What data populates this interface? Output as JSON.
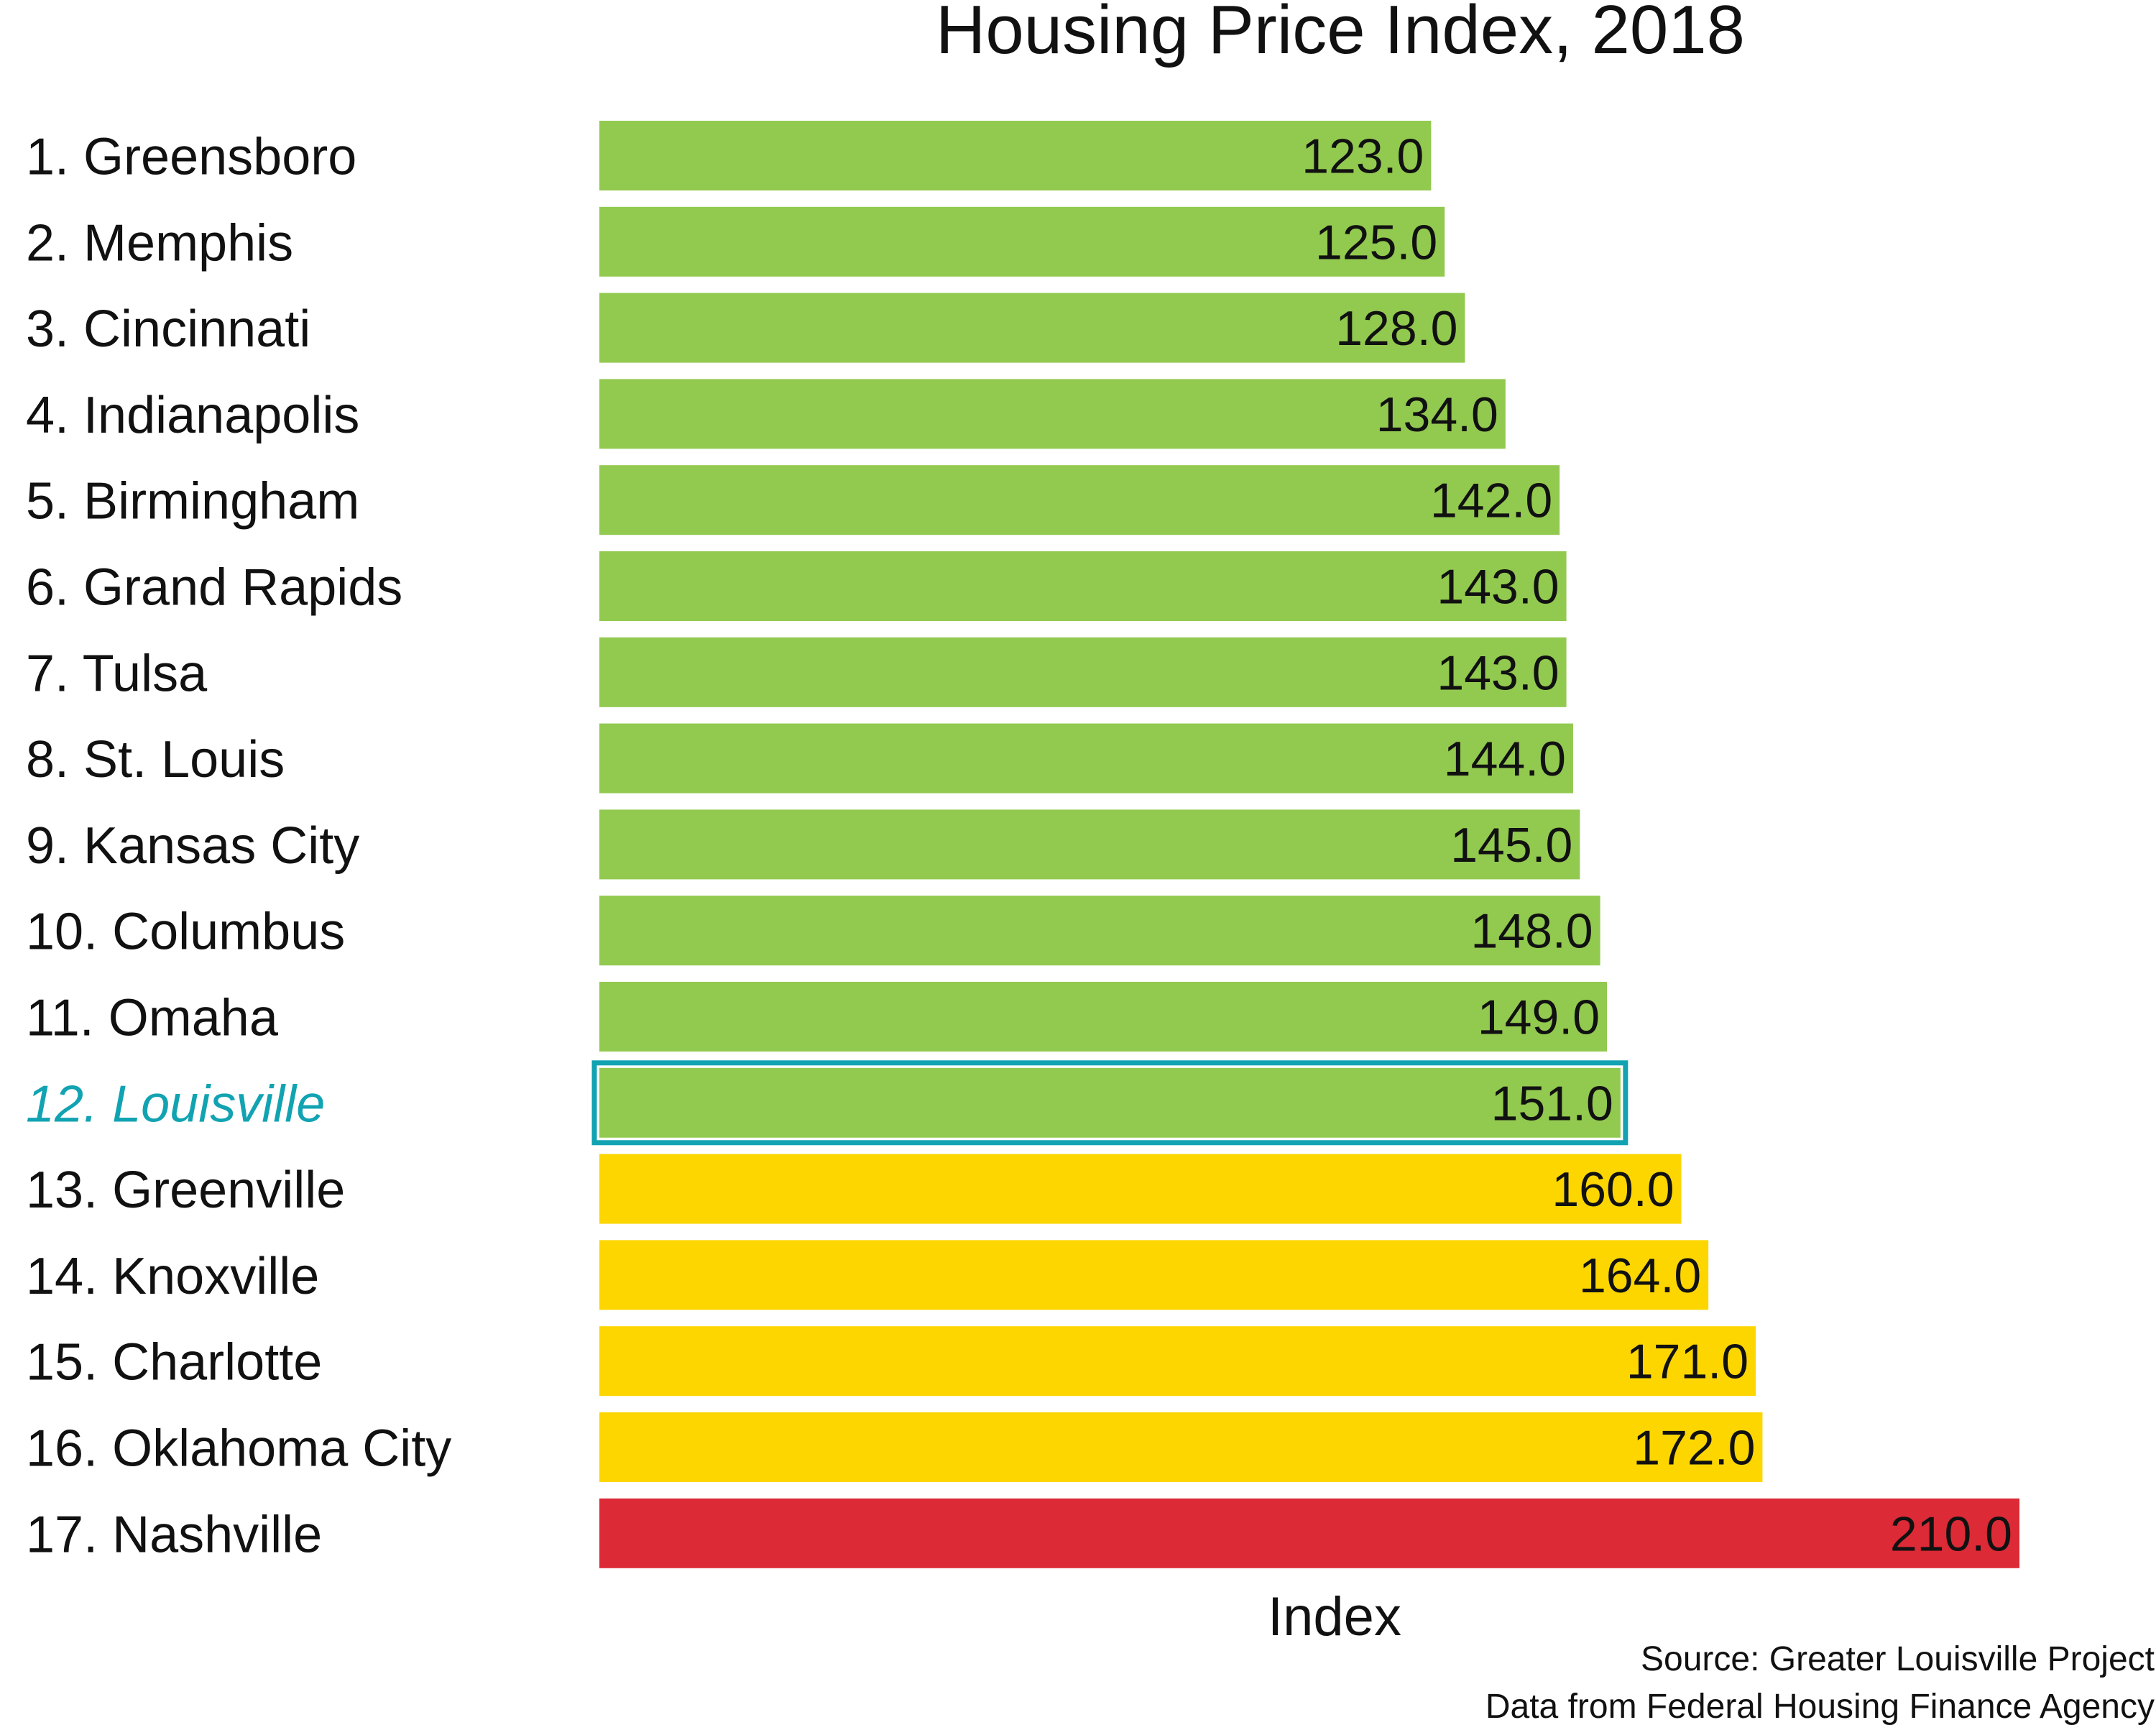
{
  "chart_data": {
    "type": "bar",
    "orientation": "horizontal",
    "title": "Housing Price Index, 2018",
    "xlabel": "Index",
    "ylabel": "",
    "xlim": [
      0,
      210
    ],
    "grid": false,
    "legend": "none",
    "categories": [
      "1. Greensboro",
      "2. Memphis",
      "3. Cincinnati",
      "4. Indianapolis",
      "5. Birmingham",
      "6. Grand Rapids",
      "7. Tulsa",
      "8. St. Louis",
      "9. Kansas City",
      "10. Columbus",
      "11. Omaha",
      "12. Louisville",
      "13. Greenville",
      "14. Knoxville",
      "15. Charlotte",
      "16. Oklahoma City",
      "17. Nashville"
    ],
    "values": [
      123.0,
      125.0,
      128.0,
      134.0,
      142.0,
      143.0,
      143.0,
      144.0,
      145.0,
      148.0,
      149.0,
      151.0,
      160.0,
      164.0,
      171.0,
      172.0,
      210.0
    ],
    "data_labels": [
      "123.0",
      "125.0",
      "128.0",
      "134.0",
      "142.0",
      "143.0",
      "143.0",
      "144.0",
      "145.0",
      "148.0",
      "149.0",
      "151.0",
      "160.0",
      "164.0",
      "171.0",
      "172.0",
      "210.0"
    ],
    "bar_colors": [
      "#92c94f",
      "#92c94f",
      "#92c94f",
      "#92c94f",
      "#92c94f",
      "#92c94f",
      "#92c94f",
      "#92c94f",
      "#92c94f",
      "#92c94f",
      "#92c94f",
      "#92c94f",
      "#fdd600",
      "#fdd600",
      "#fdd600",
      "#fdd600",
      "#dc2a36"
    ],
    "highlight": {
      "category": "12. Louisville",
      "color": "#12a3b2"
    },
    "source_lines": [
      "Source: Greater Louisville Project",
      "Data from Federal Housing Finance Agency"
    ]
  }
}
